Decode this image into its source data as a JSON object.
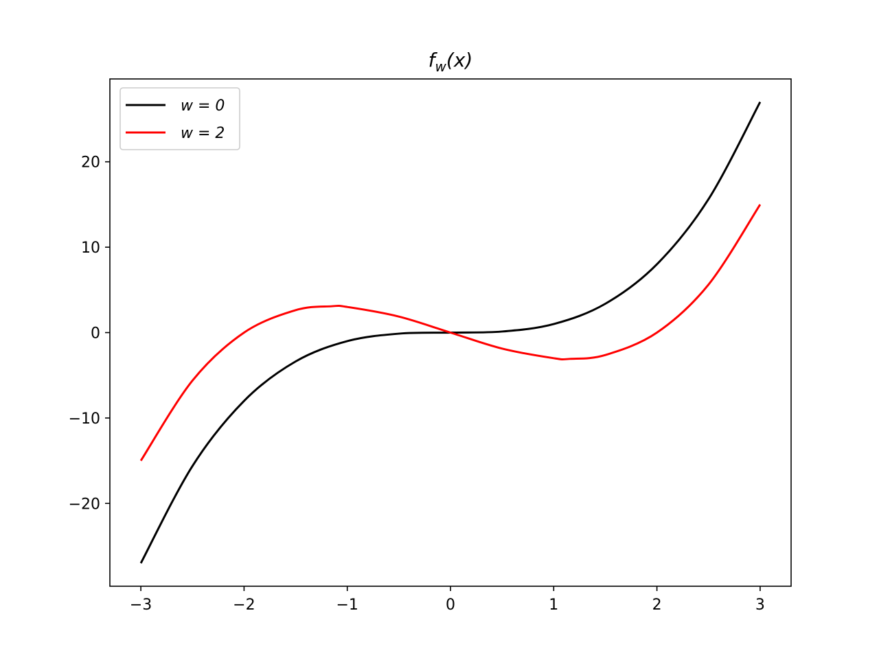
{
  "chart_data": {
    "type": "line",
    "title": "f_w(x)",
    "title_parts": {
      "base": "f",
      "sub": "w",
      "rest": "(x)"
    },
    "xlabel": "",
    "ylabel": "",
    "xlim": [
      -3.3,
      3.3
    ],
    "ylim": [
      -29.7,
      29.7
    ],
    "xticks": [
      -3,
      -2,
      -1,
      0,
      1,
      2,
      3
    ],
    "xtick_labels": [
      "−3",
      "−2",
      "−1",
      "0",
      "1",
      "2",
      "3"
    ],
    "yticks": [
      -20,
      -10,
      0,
      10,
      20
    ],
    "ytick_labels": [
      "−20",
      "−10",
      "0",
      "10",
      "20"
    ],
    "grid": false,
    "legend_position": "top-left",
    "series": [
      {
        "name": "w = 0",
        "color": "#000000",
        "x": [
          -3,
          -2.5,
          -2,
          -1.5,
          -1,
          -0.5,
          0,
          0.5,
          1,
          1.5,
          2,
          2.5,
          3
        ],
        "y": [
          -27,
          -15.625,
          -8,
          -3.375,
          -1,
          -0.125,
          0,
          0.125,
          1,
          3.375,
          8,
          15.625,
          27
        ]
      },
      {
        "name": "w = 2",
        "color": "#ff0000",
        "x": [
          -3,
          -2.5,
          -2,
          -1.5,
          -1.155,
          -1,
          -0.5,
          0,
          0.5,
          1,
          1.155,
          1.5,
          2,
          2.5,
          3
        ],
        "y": [
          -15,
          -5.625,
          0,
          2.625,
          3.079,
          3,
          1.875,
          0,
          -1.875,
          -3,
          -3.079,
          -2.625,
          0,
          5.625,
          15
        ]
      }
    ]
  }
}
